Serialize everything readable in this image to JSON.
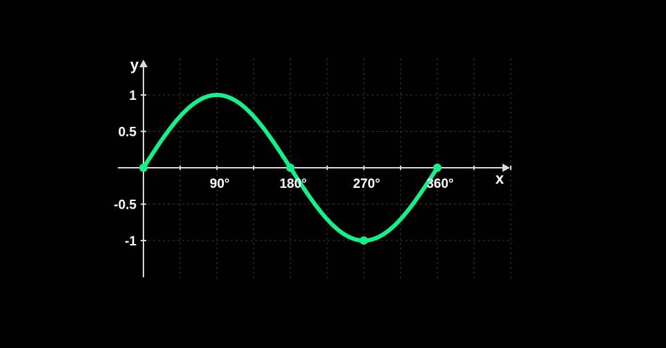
{
  "chart_data": {
    "type": "line",
    "xlabel": "x",
    "ylabel": "y",
    "xlim": [
      0,
      450
    ],
    "ylim": [
      -1.5,
      1
    ],
    "x_ticks": [
      90,
      180,
      270,
      360
    ],
    "x_tick_labels": [
      "90°",
      "180°",
      "270°",
      "360°"
    ],
    "y_ticks": [
      1,
      0.5,
      -0.5,
      -1
    ],
    "y_tick_labels": [
      "1",
      "0.5",
      "-0.5",
      "-1"
    ],
    "grid": true,
    "series": [
      {
        "function": "sin",
        "x_range": [
          0,
          360
        ],
        "x": [
          0,
          90,
          180,
          270,
          360
        ],
        "y": [
          0,
          1,
          0,
          -1,
          0
        ]
      }
    ],
    "markers": [
      {
        "x": 0,
        "y": 0
      },
      {
        "x": 180,
        "y": 0
      },
      {
        "x": 270,
        "y": -1
      },
      {
        "x": 360,
        "y": 0
      }
    ],
    "colors": {
      "background": "#000000",
      "curve": "#16f08b",
      "axis": "#d9d9d9",
      "grid": "#3a3a3a",
      "text": "#ffffff"
    }
  }
}
